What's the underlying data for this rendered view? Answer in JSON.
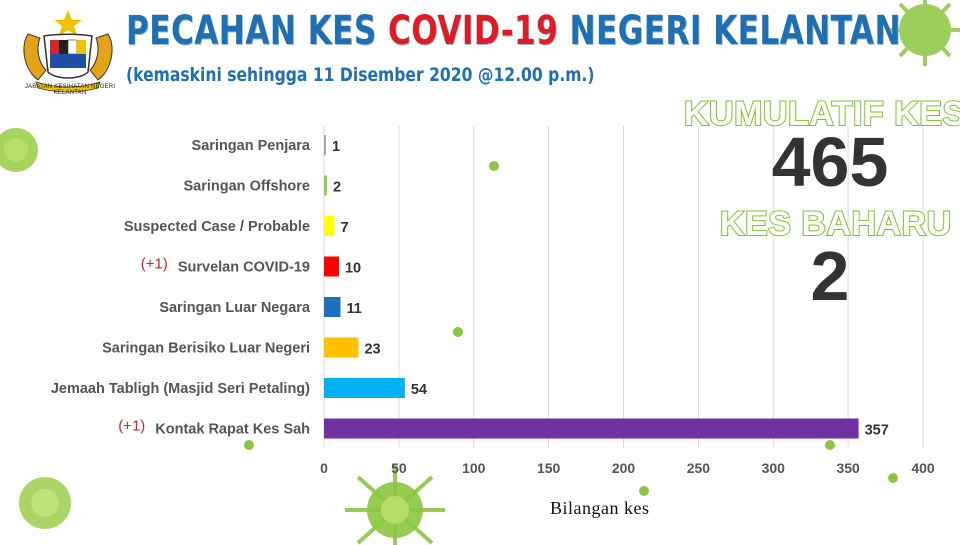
{
  "header": {
    "title_part1": "PECAHAN KES ",
    "title_part2": "COVID-19",
    "title_part3": " NEGERI KELANTAN",
    "subtitle": "(kemaskini sehingga 11 Disember 2020 @12.00 p.m.)",
    "logo_caption": "JABATAN KESIHATAN NEGERI KELANTAN"
  },
  "stats": {
    "cumulative_label": "KUMULATIF KES",
    "cumulative_value": "465",
    "new_label": "KES BAHARU",
    "new_value": "2"
  },
  "colors": {
    "title_blue": "#1f6fb3",
    "title_red": "#e01b24",
    "stat_outline_green": "#7bc423",
    "virus_green": "#8cc63f"
  },
  "chart_data": {
    "type": "bar",
    "orientation": "horizontal",
    "categories": [
      "Saringan Penjara",
      "Saringan Offshore",
      "Suspected Case / Probable",
      "Survelan COVID-19",
      "Saringan Luar Negara",
      "Saringan Berisiko Luar Negeri",
      "Jemaah Tabligh (Masjid Seri Petaling)",
      "Kontak Rapat Kes Sah"
    ],
    "values": [
      1,
      2,
      7,
      10,
      11,
      23,
      54,
      357
    ],
    "bar_colors": [
      "#a6a6a6",
      "#92d050",
      "#ffff00",
      "#ff0000",
      "#1f6fbf",
      "#ffc000",
      "#00b0f0",
      "#7030a0"
    ],
    "annotations": [
      "",
      "",
      "",
      "(+1)",
      "",
      "",
      "",
      "(+1)"
    ],
    "xlabel": "Bilangan kes",
    "ylabel": "",
    "xlim": [
      0,
      400
    ],
    "xticks": [
      0,
      50,
      100,
      150,
      200,
      250,
      300,
      350,
      400
    ],
    "grid": "vertical"
  }
}
